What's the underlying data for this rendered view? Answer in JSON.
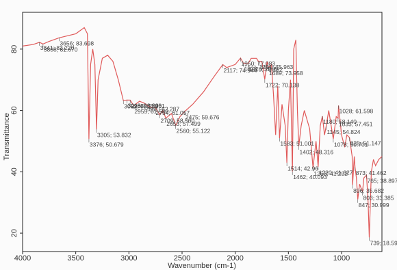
{
  "chart_data": {
    "type": "line",
    "xlabel": "Wavenumber (cm-1)",
    "ylabel": "Transmittance",
    "xlim": [
      4000,
      620
    ],
    "xticks": [
      4000,
      3500,
      3000,
      2500,
      2000,
      1500,
      1000
    ],
    "ylim": [
      14,
      92
    ],
    "yticks": [
      20,
      40,
      60,
      80
    ],
    "series": [
      {
        "color": "#e05a5a",
        "x": [
          4000,
          3900,
          3841,
          3808,
          3750,
          3656,
          3500,
          3420,
          3390,
          3376,
          3360,
          3340,
          3320,
          3305,
          3290,
          3250,
          3200,
          3150,
          3100,
          3052,
          3018,
          2988,
          2955,
          2900,
          2851,
          2800,
          2754,
          2709,
          2680,
          2653,
          2600,
          2560,
          2520,
          2475,
          2400,
          2300,
          2200,
          2117,
          2080,
          2000,
          1950,
          1923,
          1879,
          1850,
          1800,
          1781,
          1750,
          1722,
          1700,
          1689,
          1660,
          1640,
          1620,
          1600,
          1583,
          1560,
          1530,
          1514,
          1500,
          1480,
          1462,
          1450,
          1430,
          1415,
          1402,
          1380,
          1350,
          1300,
          1268,
          1240,
          1220,
          1200,
          1180,
          1160,
          1145,
          1120,
          1078,
          1050,
          1033,
          1028,
          1000,
          970,
          950,
          925,
          900,
          896,
          880,
          873,
          860,
          847,
          830,
          803,
          790,
          765,
          750,
          739,
          720,
          700,
          680,
          650,
          620
        ],
        "values": [
          81,
          81.5,
          82.22,
          81.67,
          82.5,
          83.698,
          85,
          87,
          85,
          50.679,
          75,
          80,
          75,
          53.832,
          70,
          77,
          78,
          76,
          70,
          63.219,
          63.39,
          63.361,
          61.58,
          63,
          62.287,
          61,
          61.057,
          58.56,
          60,
          57.499,
          59,
          55.122,
          58,
          59.676,
          62,
          66,
          71,
          74.944,
          74,
          75,
          77.083,
          75.399,
          75.182,
          77,
          77,
          75.963,
          76,
          70.138,
          76,
          73.958,
          75,
          65,
          52,
          68,
          51.001,
          62,
          55,
          42.96,
          60,
          70,
          40.093,
          80,
          83,
          60,
          48.316,
          55,
          60,
          54,
          41.292,
          50,
          41.627,
          55,
          58.14,
          52,
          54.824,
          60,
          50.701,
          58,
          57.451,
          61.598,
          52,
          48,
          52,
          51.147,
          45,
          35.682,
          45,
          41.462,
          38,
          30.999,
          36,
          33.385,
          38,
          38.897,
          30,
          18.594,
          40,
          44,
          42,
          44,
          45
        ]
      }
    ],
    "annotations": [
      {
        "label": "3841; 82.220",
        "x": 3841,
        "y": 82.22
      },
      {
        "label": "3656; 83.698",
        "x": 3656,
        "y": 83.698
      },
      {
        "label": "3808; 81.670",
        "x": 3808,
        "y": 81.67
      },
      {
        "label": "3018; 63.390",
        "x": 3018,
        "y": 63.39
      },
      {
        "label": "3052; 63.219",
        "x": 3052,
        "y": 63.219
      },
      {
        "label": "2851; 62.287",
        "x": 2851,
        "y": 62.287
      },
      {
        "label": "2988; 63.361",
        "x": 2988,
        "y": 63.361
      },
      {
        "label": "3305; 53.832",
        "x": 3305,
        "y": 53.832
      },
      {
        "label": "3376; 50.679",
        "x": 3376,
        "y": 50.679
      },
      {
        "label": "2955; 61.580",
        "x": 2955,
        "y": 61.58
      },
      {
        "label": "2754; 61.057",
        "x": 2754,
        "y": 61.057
      },
      {
        "label": "2709; 58.560",
        "x": 2709,
        "y": 58.56
      },
      {
        "label": "2653; 57.499",
        "x": 2653,
        "y": 57.499
      },
      {
        "label": "2475; 59.676",
        "x": 2475,
        "y": 59.676
      },
      {
        "label": "2560; 55.122",
        "x": 2560,
        "y": 55.122
      },
      {
        "label": "2117; 74.944",
        "x": 2117,
        "y": 74.944
      },
      {
        "label": "1950; 77.083",
        "x": 1950,
        "y": 77.083
      },
      {
        "label": "1923; 75.399",
        "x": 1923,
        "y": 75.399
      },
      {
        "label": "1879; 75.182",
        "x": 1879,
        "y": 75.182
      },
      {
        "label": "1689; 73.958",
        "x": 1689,
        "y": 73.958
      },
      {
        "label": "1781; 75.963",
        "x": 1781,
        "y": 75.963
      },
      {
        "label": "1722; 70.138",
        "x": 1722,
        "y": 70.138
      },
      {
        "label": "1402; 48.316",
        "x": 1402,
        "y": 48.316
      },
      {
        "label": "1583; 51.001",
        "x": 1583,
        "y": 51.001
      },
      {
        "label": "1462; 40.093",
        "x": 1462,
        "y": 40.093
      },
      {
        "label": "1514; 42.96",
        "x": 1514,
        "y": 42.96
      },
      {
        "label": "1180; 58.140",
        "x": 1180,
        "y": 58.14
      },
      {
        "label": "925; 51.147",
        "x": 925,
        "y": 51.147
      },
      {
        "label": "1220; 41.627",
        "x": 1220,
        "y": 41.627
      },
      {
        "label": "1145; 54.824",
        "x": 1145,
        "y": 54.824
      },
      {
        "label": "1028; 61.598",
        "x": 1028,
        "y": 61.598
      },
      {
        "label": "1033; 57.451",
        "x": 1033,
        "y": 57.451
      },
      {
        "label": "1078; 50.701",
        "x": 1078,
        "y": 50.701
      },
      {
        "label": "1268; 41.292",
        "x": 1268,
        "y": 41.292
      },
      {
        "label": "896; 35.682",
        "x": 896,
        "y": 35.682
      },
      {
        "label": "873; 41.462",
        "x": 873,
        "y": 41.462
      },
      {
        "label": "847; 30.999",
        "x": 847,
        "y": 30.999
      },
      {
        "label": "803; 33.385",
        "x": 803,
        "y": 33.385
      },
      {
        "label": "739; 18.594",
        "x": 739,
        "y": 18.594
      },
      {
        "label": "765; 38.897",
        "x": 765,
        "y": 38.897
      }
    ]
  }
}
